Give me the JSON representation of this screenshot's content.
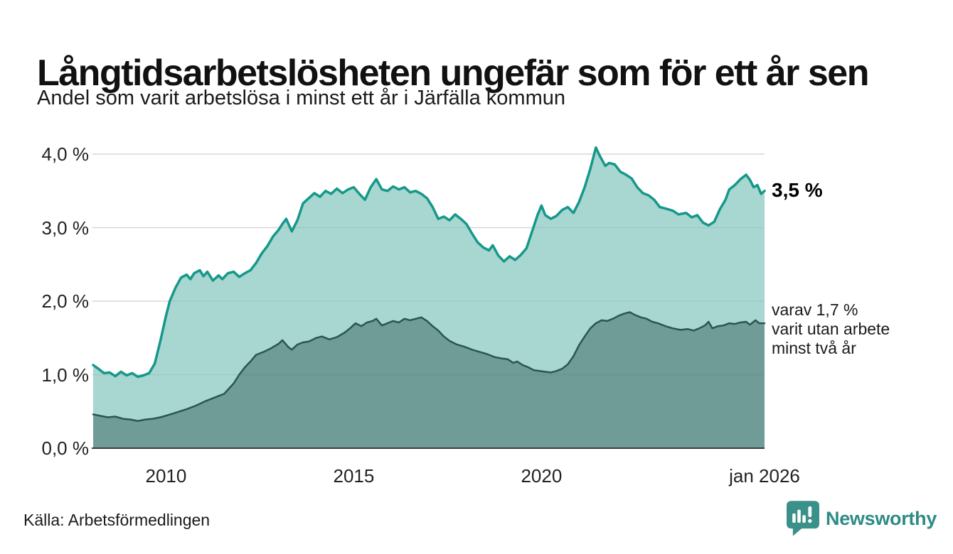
{
  "footer": {
    "source": "Källa: Arbetsförmedlingen",
    "brand": "Newsworthy",
    "brand_color": "#2E8B84"
  },
  "chart_data": {
    "type": "area",
    "title": "Långtidsarbetslösheten ungefär som för ett år sen",
    "subtitle": "Andel som varit arbetslösa i minst ett år i Järfälla kommun",
    "region": "Järfälla kommun",
    "unit": "%",
    "xlim": [
      2008.06,
      2025.94
    ],
    "ylim": [
      0,
      4
    ],
    "grid": true,
    "legend_position": "none",
    "ytick_values": [
      4,
      3,
      2,
      1,
      0
    ],
    "ytick_labels": [
      "4,0 %",
      "3,0 %",
      "2,0 %",
      "1,0 %",
      "0,0 %"
    ],
    "xticks": [
      {
        "value": 2010,
        "label": "2010"
      },
      {
        "value": 2015,
        "label": "2015"
      },
      {
        "value": 2020,
        "label": "2020"
      },
      {
        "value": 2025.94,
        "label": "jan 2026"
      }
    ],
    "annotations": {
      "end_value": "3,5 %",
      "secondary": "varav 1,7 %\nvarit utan arbete\nminst två år"
    },
    "colors": {
      "line_total": "#15988A",
      "fill_total": "#A8D6D0",
      "line_two_years": "#2C5456",
      "fill_two_years": "#6F9C97",
      "gridline": "#E3E3E3",
      "axis": "#3B3B3B"
    },
    "series": [
      {
        "name": "Arbetslösa minst ett år",
        "end_value": 3.5,
        "color": "#15988A",
        "fill": "#A8D6D0",
        "stroke_width": 3.5,
        "points": [
          [
            2008.06,
            1.13
          ],
          [
            2008.2,
            1.08
          ],
          [
            2008.35,
            1.02
          ],
          [
            2008.5,
            1.03
          ],
          [
            2008.65,
            0.98
          ],
          [
            2008.8,
            1.04
          ],
          [
            2008.95,
            0.99
          ],
          [
            2009.1,
            1.02
          ],
          [
            2009.25,
            0.97
          ],
          [
            2009.4,
            0.99
          ],
          [
            2009.55,
            1.02
          ],
          [
            2009.7,
            1.15
          ],
          [
            2009.85,
            1.46
          ],
          [
            2010.0,
            1.8
          ],
          [
            2010.1,
            2.0
          ],
          [
            2010.25,
            2.18
          ],
          [
            2010.4,
            2.32
          ],
          [
            2010.55,
            2.36
          ],
          [
            2010.65,
            2.3
          ],
          [
            2010.75,
            2.38
          ],
          [
            2010.9,
            2.42
          ],
          [
            2011.0,
            2.34
          ],
          [
            2011.1,
            2.4
          ],
          [
            2011.25,
            2.28
          ],
          [
            2011.4,
            2.35
          ],
          [
            2011.5,
            2.3
          ],
          [
            2011.65,
            2.38
          ],
          [
            2011.8,
            2.4
          ],
          [
            2011.95,
            2.33
          ],
          [
            2012.1,
            2.38
          ],
          [
            2012.25,
            2.42
          ],
          [
            2012.4,
            2.52
          ],
          [
            2012.55,
            2.65
          ],
          [
            2012.7,
            2.75
          ],
          [
            2012.85,
            2.88
          ],
          [
            2013.0,
            2.97
          ],
          [
            2013.1,
            3.05
          ],
          [
            2013.2,
            3.12
          ],
          [
            2013.35,
            2.95
          ],
          [
            2013.5,
            3.1
          ],
          [
            2013.65,
            3.33
          ],
          [
            2013.8,
            3.4
          ],
          [
            2013.95,
            3.47
          ],
          [
            2014.1,
            3.42
          ],
          [
            2014.25,
            3.5
          ],
          [
            2014.4,
            3.46
          ],
          [
            2014.55,
            3.53
          ],
          [
            2014.7,
            3.47
          ],
          [
            2014.85,
            3.52
          ],
          [
            2015.0,
            3.55
          ],
          [
            2015.15,
            3.46
          ],
          [
            2015.3,
            3.38
          ],
          [
            2015.45,
            3.55
          ],
          [
            2015.6,
            3.66
          ],
          [
            2015.75,
            3.52
          ],
          [
            2015.9,
            3.5
          ],
          [
            2016.05,
            3.56
          ],
          [
            2016.2,
            3.52
          ],
          [
            2016.35,
            3.55
          ],
          [
            2016.5,
            3.48
          ],
          [
            2016.65,
            3.5
          ],
          [
            2016.8,
            3.46
          ],
          [
            2016.95,
            3.4
          ],
          [
            2017.1,
            3.28
          ],
          [
            2017.25,
            3.12
          ],
          [
            2017.4,
            3.15
          ],
          [
            2017.55,
            3.1
          ],
          [
            2017.7,
            3.18
          ],
          [
            2017.85,
            3.12
          ],
          [
            2018.0,
            3.05
          ],
          [
            2018.15,
            2.92
          ],
          [
            2018.3,
            2.8
          ],
          [
            2018.45,
            2.73
          ],
          [
            2018.6,
            2.69
          ],
          [
            2018.7,
            2.76
          ],
          [
            2018.85,
            2.62
          ],
          [
            2019.0,
            2.54
          ],
          [
            2019.15,
            2.61
          ],
          [
            2019.3,
            2.56
          ],
          [
            2019.45,
            2.63
          ],
          [
            2019.6,
            2.72
          ],
          [
            2019.75,
            2.95
          ],
          [
            2019.9,
            3.18
          ],
          [
            2020.0,
            3.3
          ],
          [
            2020.1,
            3.17
          ],
          [
            2020.25,
            3.12
          ],
          [
            2020.4,
            3.16
          ],
          [
            2020.55,
            3.24
          ],
          [
            2020.7,
            3.28
          ],
          [
            2020.85,
            3.2
          ],
          [
            2021.0,
            3.35
          ],
          [
            2021.15,
            3.55
          ],
          [
            2021.3,
            3.8
          ],
          [
            2021.45,
            4.09
          ],
          [
            2021.55,
            3.98
          ],
          [
            2021.7,
            3.84
          ],
          [
            2021.8,
            3.88
          ],
          [
            2021.95,
            3.86
          ],
          [
            2022.1,
            3.76
          ],
          [
            2022.25,
            3.72
          ],
          [
            2022.4,
            3.67
          ],
          [
            2022.55,
            3.55
          ],
          [
            2022.7,
            3.47
          ],
          [
            2022.85,
            3.44
          ],
          [
            2023.0,
            3.38
          ],
          [
            2023.15,
            3.28
          ],
          [
            2023.3,
            3.26
          ],
          [
            2023.5,
            3.23
          ],
          [
            2023.65,
            3.18
          ],
          [
            2023.85,
            3.2
          ],
          [
            2024.0,
            3.14
          ],
          [
            2024.15,
            3.17
          ],
          [
            2024.3,
            3.07
          ],
          [
            2024.45,
            3.03
          ],
          [
            2024.6,
            3.08
          ],
          [
            2024.75,
            3.25
          ],
          [
            2024.9,
            3.38
          ],
          [
            2025.0,
            3.52
          ],
          [
            2025.15,
            3.58
          ],
          [
            2025.3,
            3.66
          ],
          [
            2025.45,
            3.72
          ],
          [
            2025.55,
            3.65
          ],
          [
            2025.65,
            3.55
          ],
          [
            2025.75,
            3.58
          ],
          [
            2025.85,
            3.46
          ],
          [
            2025.94,
            3.5
          ]
        ]
      },
      {
        "name": "varav utan arbete minst två år",
        "end_value": 1.7,
        "color": "#2C5456",
        "fill": "#6F9C97",
        "stroke_width": 2.5,
        "points": [
          [
            2008.06,
            0.46
          ],
          [
            2008.25,
            0.44
          ],
          [
            2008.45,
            0.42
          ],
          [
            2008.65,
            0.43
          ],
          [
            2008.85,
            0.4
          ],
          [
            2009.05,
            0.39
          ],
          [
            2009.25,
            0.37
          ],
          [
            2009.45,
            0.39
          ],
          [
            2009.65,
            0.4
          ],
          [
            2009.85,
            0.42
          ],
          [
            2010.05,
            0.45
          ],
          [
            2010.3,
            0.49
          ],
          [
            2010.55,
            0.53
          ],
          [
            2010.8,
            0.58
          ],
          [
            2011.05,
            0.64
          ],
          [
            2011.3,
            0.69
          ],
          [
            2011.55,
            0.74
          ],
          [
            2011.8,
            0.88
          ],
          [
            2011.95,
            1.0
          ],
          [
            2012.1,
            1.1
          ],
          [
            2012.25,
            1.18
          ],
          [
            2012.4,
            1.27
          ],
          [
            2012.6,
            1.31
          ],
          [
            2012.8,
            1.36
          ],
          [
            2013.0,
            1.42
          ],
          [
            2013.1,
            1.47
          ],
          [
            2013.25,
            1.38
          ],
          [
            2013.35,
            1.34
          ],
          [
            2013.5,
            1.41
          ],
          [
            2013.65,
            1.44
          ],
          [
            2013.8,
            1.45
          ],
          [
            2014.0,
            1.5
          ],
          [
            2014.15,
            1.52
          ],
          [
            2014.35,
            1.48
          ],
          [
            2014.55,
            1.51
          ],
          [
            2014.75,
            1.57
          ],
          [
            2014.9,
            1.63
          ],
          [
            2015.05,
            1.7
          ],
          [
            2015.2,
            1.66
          ],
          [
            2015.35,
            1.71
          ],
          [
            2015.5,
            1.73
          ],
          [
            2015.6,
            1.76
          ],
          [
            2015.75,
            1.67
          ],
          [
            2015.9,
            1.7
          ],
          [
            2016.05,
            1.73
          ],
          [
            2016.2,
            1.71
          ],
          [
            2016.35,
            1.76
          ],
          [
            2016.5,
            1.74
          ],
          [
            2016.65,
            1.76
          ],
          [
            2016.8,
            1.78
          ],
          [
            2016.95,
            1.73
          ],
          [
            2017.1,
            1.66
          ],
          [
            2017.25,
            1.6
          ],
          [
            2017.4,
            1.52
          ],
          [
            2017.55,
            1.46
          ],
          [
            2017.75,
            1.41
          ],
          [
            2017.95,
            1.38
          ],
          [
            2018.15,
            1.34
          ],
          [
            2018.35,
            1.31
          ],
          [
            2018.55,
            1.28
          ],
          [
            2018.75,
            1.24
          ],
          [
            2018.95,
            1.22
          ],
          [
            2019.1,
            1.21
          ],
          [
            2019.25,
            1.16
          ],
          [
            2019.35,
            1.18
          ],
          [
            2019.5,
            1.13
          ],
          [
            2019.65,
            1.1
          ],
          [
            2019.8,
            1.06
          ],
          [
            2019.95,
            1.05
          ],
          [
            2020.1,
            1.04
          ],
          [
            2020.25,
            1.03
          ],
          [
            2020.4,
            1.05
          ],
          [
            2020.55,
            1.08
          ],
          [
            2020.7,
            1.14
          ],
          [
            2020.85,
            1.25
          ],
          [
            2021.0,
            1.4
          ],
          [
            2021.15,
            1.52
          ],
          [
            2021.3,
            1.63
          ],
          [
            2021.45,
            1.7
          ],
          [
            2021.6,
            1.74
          ],
          [
            2021.75,
            1.73
          ],
          [
            2021.9,
            1.76
          ],
          [
            2022.05,
            1.8
          ],
          [
            2022.2,
            1.83
          ],
          [
            2022.35,
            1.85
          ],
          [
            2022.5,
            1.81
          ],
          [
            2022.65,
            1.78
          ],
          [
            2022.8,
            1.76
          ],
          [
            2022.95,
            1.72
          ],
          [
            2023.1,
            1.7
          ],
          [
            2023.3,
            1.66
          ],
          [
            2023.5,
            1.63
          ],
          [
            2023.7,
            1.61
          ],
          [
            2023.9,
            1.62
          ],
          [
            2024.05,
            1.6
          ],
          [
            2024.2,
            1.63
          ],
          [
            2024.35,
            1.67
          ],
          [
            2024.45,
            1.72
          ],
          [
            2024.55,
            1.63
          ],
          [
            2024.7,
            1.66
          ],
          [
            2024.85,
            1.67
          ],
          [
            2025.0,
            1.7
          ],
          [
            2025.15,
            1.69
          ],
          [
            2025.3,
            1.71
          ],
          [
            2025.45,
            1.72
          ],
          [
            2025.55,
            1.68
          ],
          [
            2025.7,
            1.74
          ],
          [
            2025.8,
            1.7
          ],
          [
            2025.94,
            1.7
          ]
        ]
      }
    ]
  }
}
